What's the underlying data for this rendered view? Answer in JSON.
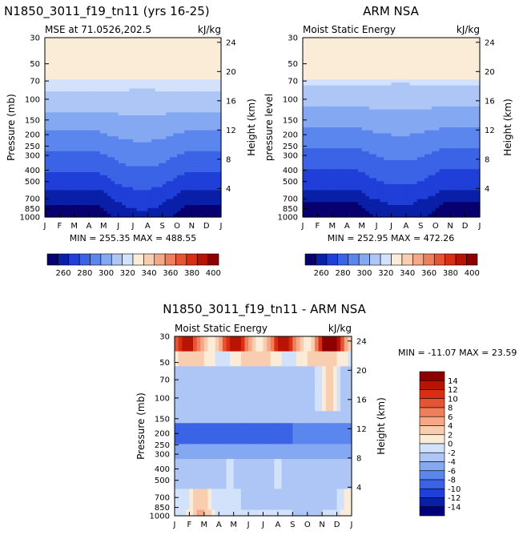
{
  "chart_data": [
    {
      "type": "heatmap",
      "title": "N1850_3011_f19_tn11 (yrs 16-25)",
      "subtitle_left": "MSE at 71.0526,202.5",
      "units": "kJ/kg",
      "ylabel": "Pressure (mb)",
      "ylabel_right": "Height (km)",
      "minmax_label": "MIN = 255.35 MAX = 488.55",
      "x": [
        "J",
        "F",
        "M",
        "A",
        "M",
        "J",
        "J",
        "A",
        "S",
        "O",
        "N",
        "D",
        "J"
      ],
      "pressure_ticks": [
        30,
        50,
        70,
        100,
        150,
        200,
        250,
        300,
        400,
        500,
        700,
        850,
        1000
      ],
      "height_ticks": [
        4,
        8,
        12,
        16,
        20,
        24
      ],
      "levels": [
        260,
        280,
        300,
        320,
        340,
        360,
        380,
        400
      ],
      "colorbar_ticks": [
        "260",
        "280",
        "300",
        "320",
        "340",
        "360",
        "380",
        "400"
      ]
    },
    {
      "type": "heatmap",
      "title": "ARM NSA",
      "subtitle_left": "Moist Static Energy",
      "units": "kJ/kg",
      "ylabel": "pressure level",
      "ylabel_right": "Height (km)",
      "minmax_label": "MIN = 252.95 MAX = 472.26",
      "x": [
        "J",
        "F",
        "M",
        "A",
        "M",
        "J",
        "J",
        "A",
        "S",
        "O",
        "N",
        "D",
        "J"
      ],
      "pressure_ticks": [
        30,
        50,
        70,
        100,
        150,
        200,
        250,
        300,
        400,
        500,
        700,
        850,
        1000
      ],
      "height_ticks": [
        4,
        8,
        12,
        16,
        20,
        24
      ],
      "levels": [
        260,
        280,
        300,
        320,
        340,
        360,
        380,
        400
      ],
      "colorbar_ticks": [
        "260",
        "280",
        "300",
        "320",
        "340",
        "360",
        "380",
        "400"
      ]
    },
    {
      "type": "heatmap",
      "title": "N1850_3011_f19_tn11 - ARM NSA",
      "subtitle_left": "Moist Static Energy",
      "units": "kJ/kg",
      "ylabel": "Pressure (mb)",
      "ylabel_right": "Height (km)",
      "minmax_label": "MIN = -11.07 MAX =  23.59",
      "x": [
        "J",
        "F",
        "M",
        "A",
        "M",
        "J",
        "J",
        "A",
        "S",
        "O",
        "N",
        "D",
        "J"
      ],
      "pressure_ticks": [
        30,
        50,
        70,
        100,
        150,
        200,
        250,
        300,
        400,
        500,
        700,
        850,
        1000
      ],
      "height_ticks": [
        4,
        8,
        12,
        16,
        20,
        24
      ],
      "levels": [
        -14,
        -12,
        -10,
        -8,
        -6,
        -4,
        -2,
        0,
        2,
        4,
        6,
        8,
        10,
        12,
        14
      ],
      "colorbar_ticks": [
        "14",
        "12",
        "10",
        "8",
        "6",
        "4",
        "2",
        "0",
        "-2",
        "-4",
        "-6",
        "-8",
        "-10",
        "-12",
        "-14"
      ]
    }
  ],
  "palettes": {
    "mse": [
      "#08006e",
      "#0a1fa8",
      "#1f3fd8",
      "#3a63e6",
      "#5a86ee",
      "#84a8f2",
      "#adc6f6",
      "#d2e2fb",
      "#fbecd8",
      "#f9cdb0",
      "#f5a887",
      "#ef7f5c",
      "#e65533",
      "#d92e12",
      "#b81405",
      "#8c0000"
    ],
    "diff": [
      "#00007a",
      "#0a1fa8",
      "#1f3fd8",
      "#3a63e6",
      "#5a86ee",
      "#84a8f2",
      "#adc6f6",
      "#d2e2fb",
      "#fbecd8",
      "#f9cdb0",
      "#f5a887",
      "#ef7f5c",
      "#e65533",
      "#d92e12",
      "#b81405",
      "#8c0000"
    ]
  }
}
